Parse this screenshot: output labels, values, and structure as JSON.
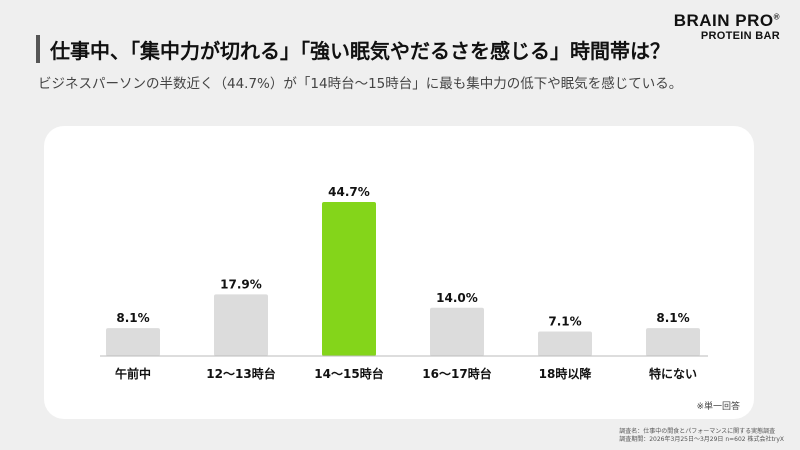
{
  "brand": {
    "name": "BRAIN PRO",
    "registered": "®",
    "sub": "PROTEIN BAR"
  },
  "title": "仕事中、「集中力が切れる」「強い眠気やだるさを感じる」時間帯は？",
  "subtitle": "ビジネスパーソンの半数近く（44.7%）が「14時台〜15時台」に最も集中力の低下や眠気を感じている。",
  "note": "※単一回答",
  "footer": {
    "line1": "調査名：仕事中の間食とパフォーマンスに関する実態調査",
    "line2": "調査期間：2026年3月25日〜3月29日 n=602 株式会社tryX"
  },
  "colors": {
    "highlight": "#84d51a",
    "bar": "#dcdcdc",
    "baseline": "#bbbbbb"
  },
  "chart_data": {
    "type": "bar",
    "categories": [
      "午前中",
      "12〜13時台",
      "14〜15時台",
      "16〜17時台",
      "18時以降",
      "特にない"
    ],
    "values": [
      8.1,
      17.9,
      44.7,
      14.0,
      7.1,
      8.1
    ],
    "data_labels": [
      "8.1%",
      "17.9%",
      "44.7%",
      "14.0%",
      "7.1%",
      "8.1%"
    ],
    "highlight_index": 2,
    "unit": "%",
    "ylim": [
      0,
      44.7
    ]
  }
}
